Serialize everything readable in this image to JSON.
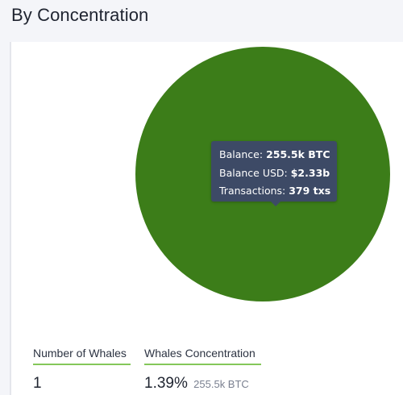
{
  "section": {
    "title": "By Concentration"
  },
  "chart_data": {
    "type": "pie",
    "slices": [
      {
        "label": "1.39%",
        "value": 100,
        "color": "#3c7d19"
      }
    ],
    "tooltip": {
      "balance_label": "Balance:",
      "balance_value": "255.5k BTC",
      "usd_label": "Balance USD:",
      "usd_value": "$2.33b",
      "tx_label": "Transactions:",
      "tx_value": "379 txs"
    }
  },
  "stats": {
    "whales_label": "Number of Whales",
    "whales_value": "1",
    "concentration_label": "Whales Concentration",
    "concentration_value": "1.39%",
    "concentration_sub": "255.5k BTC"
  },
  "colors": {
    "pie": "#3c7d19",
    "tooltip_bg": "#3d4a66",
    "accent_underline": "#84c75a"
  }
}
